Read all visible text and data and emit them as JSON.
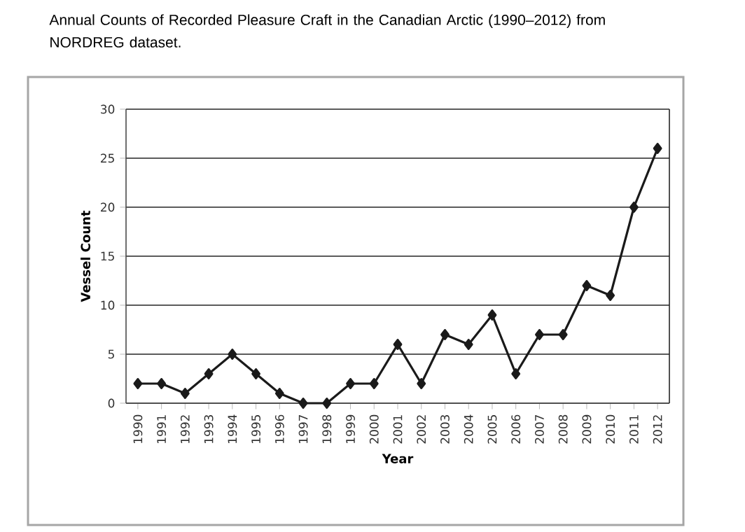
{
  "chart_data": {
    "type": "line",
    "title": "Annual Counts of Recorded Pleasure Craft in the Canadian Arctic (1990–2012) from NORDREG dataset.",
    "xlabel": "Year",
    "ylabel": "Vessel Count",
    "categories": [
      "1990",
      "1991",
      "1992",
      "1993",
      "1994",
      "1995",
      "1996",
      "1997",
      "1998",
      "1999",
      "2000",
      "2001",
      "2002",
      "2003",
      "2004",
      "2005",
      "2006",
      "2007",
      "2008",
      "2009",
      "2010",
      "2011",
      "2012"
    ],
    "series": [
      {
        "color": "#1a1a1a",
        "values": [
          2,
          2,
          1,
          3,
          5,
          3,
          1,
          0,
          0,
          2,
          2,
          6,
          2,
          7,
          6,
          9,
          3,
          7,
          7,
          12,
          11,
          20,
          26
        ]
      }
    ],
    "ylim": [
      0,
      30
    ],
    "yticks": [
      0,
      5,
      10,
      15,
      20,
      25,
      30
    ],
    "grid": "y",
    "marker": "diamond",
    "line_style": "solid"
  }
}
